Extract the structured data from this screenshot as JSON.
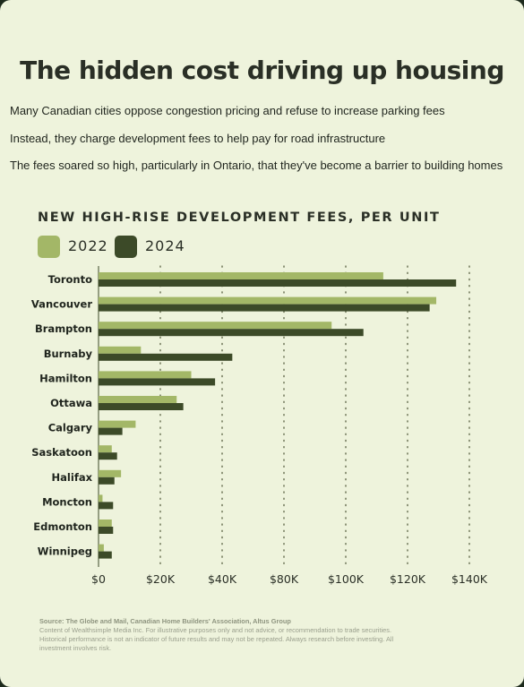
{
  "title": "The hidden cost driving up housing",
  "notes": [
    "Many Canadian cities oppose congestion pricing and refuse to increase parking fees",
    "Instead, they charge development fees to help pay for road infrastructure",
    "The fees soared so high, particularly in Ontario, that they've become a barrier to building homes"
  ],
  "colors": {
    "background": "#eef3dc",
    "series_2022": "#a3b767",
    "series_2024": "#3c4a28",
    "title": "#2a2f26"
  },
  "chart_data": {
    "type": "bar",
    "orientation": "horizontal",
    "title": "NEW HIGH-RISE DEVELOPMENT FEES, PER UNIT",
    "categories": [
      "Toronto",
      "Vancouver",
      "Brampton",
      "Burnaby",
      "Hamilton",
      "Ottawa",
      "Calgary",
      "Saskatoon",
      "Halifax",
      "Moncton",
      "Edmonton",
      "Winnipeg"
    ],
    "series": [
      {
        "name": "2022",
        "color": "#a3b767",
        "values": [
          107500,
          127500,
          88000,
          16000,
          35000,
          29500,
          14000,
          5000,
          8500,
          1500,
          5000,
          2000
        ]
      },
      {
        "name": "2024",
        "color": "#3c4a28",
        "values": [
          135000,
          125000,
          100000,
          50500,
          44000,
          32000,
          9000,
          7000,
          6000,
          5500,
          5500,
          5000
        ]
      }
    ],
    "x_ticks": [
      "$0",
      "$20K",
      "$40K",
      "$80K",
      "$100K",
      "$120K",
      "$140K"
    ],
    "xlim": [
      0,
      140000
    ],
    "grid": "vertical dotted",
    "legend": "top-left"
  },
  "source": {
    "label": "Source: The Globe and Mail, Canadian Home Builders' Association, Altus Group",
    "disclaimer": "Content of Wealthsimple Media Inc. For illustrative purposes only and not advice, or recommendation to trade securities. Historical performance is not an indicator of future results and may not be repeated. Always research before investing. All investment involves risk."
  }
}
